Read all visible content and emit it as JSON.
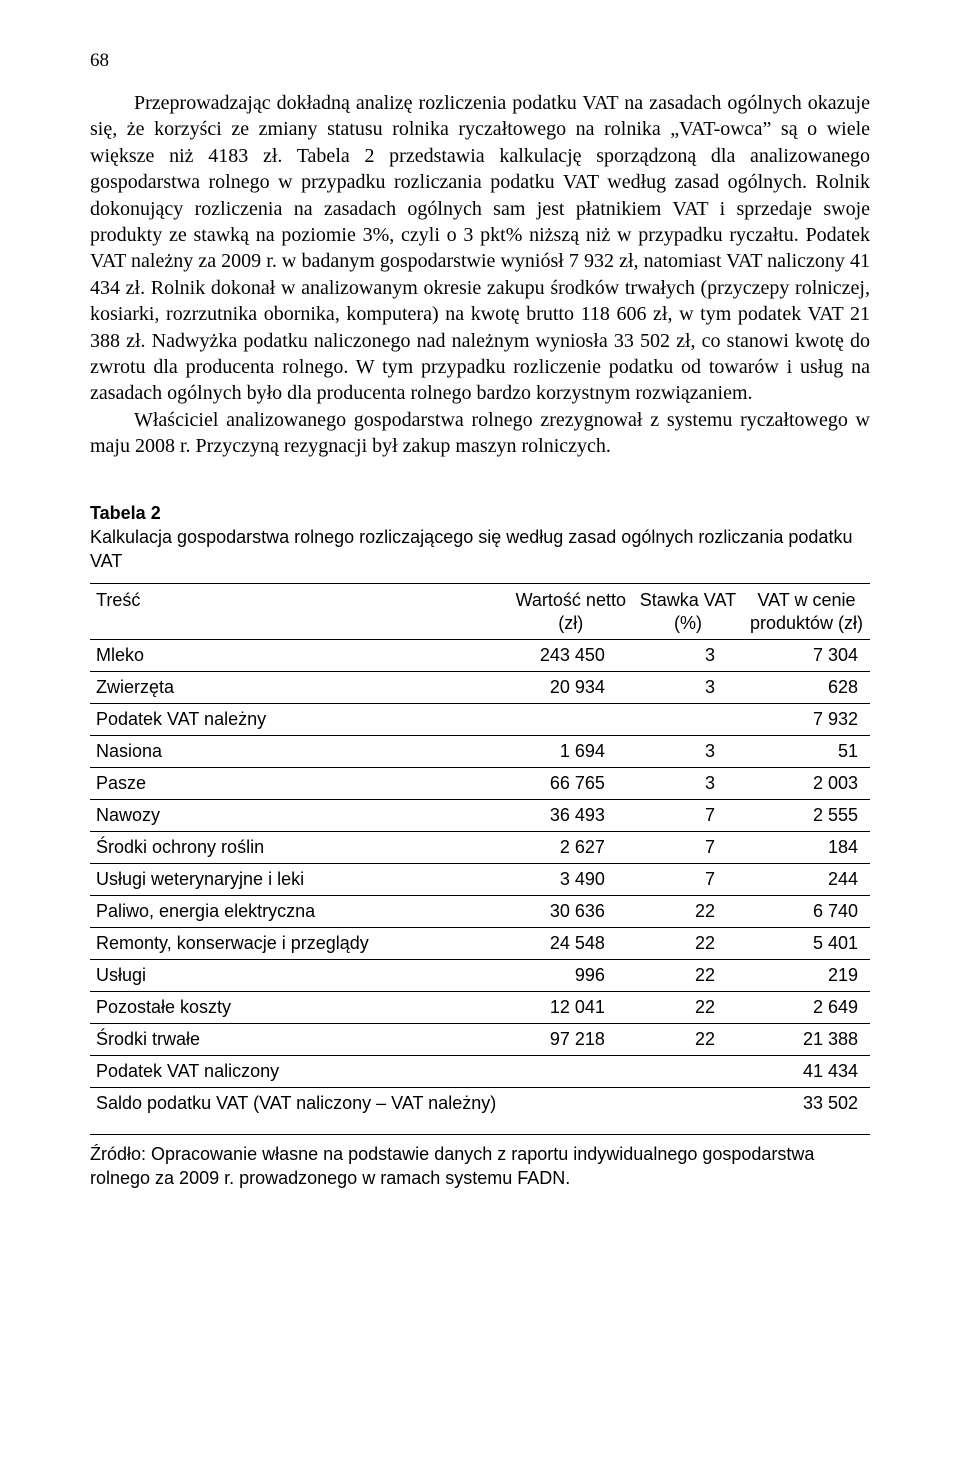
{
  "page_number": "68",
  "paragraph1": "Przeprowadzając dokładną analizę rozliczenia podatku VAT na zasadach ogólnych okazuje się, że korzyści ze zmiany statusu rolnika ryczałtowego na rolnika „VAT-owca” są o wiele większe niż 4183 zł. Tabela 2 przedstawia kalkulację sporządzoną dla analizowanego gospodarstwa rolnego w przypadku rozliczania podatku VAT według zasad ogólnych. Rolnik dokonujący rozliczenia na zasadach ogólnych sam jest płatnikiem VAT i sprzedaje swoje produkty ze stawką na poziomie 3%, czyli o 3 pkt% niższą niż w przypadku ryczałtu. Podatek VAT należny za 2009 r. w badanym gospodarstwie wyniósł 7 932 zł, natomiast VAT naliczony 41 434 zł. Rolnik  dokonał w analizowanym okresie zakupu środków trwałych (przyczepy rolniczej, kosiarki, rozrzutnika obornika, komputera) na kwotę brutto 118 606 zł, w tym podatek VAT 21 388 zł. Nadwyżka podatku naliczonego nad należnym wyniosła 33 502 zł, co stanowi kwotę do zwrotu dla producenta rolnego. W tym przypadku rozliczenie podatku od towarów i usług na zasadach ogólnych było dla producenta rolnego bardzo korzystnym rozwiązaniem.",
  "paragraph2": "Właściciel analizowanego gospodarstwa rolnego zrezygnował z systemu ryczałtowego w maju 2008 r. Przyczyną rezygnacji był zakup maszyn rolniczych.",
  "table": {
    "label": "Tabela 2",
    "caption": "Kalkulacja gospodarstwa rolnego rozliczającego się według zasad ogólnych rozliczania podatku VAT",
    "headers": {
      "c0": "Treść",
      "c1a": "Wartość netto",
      "c1b": "(zł)",
      "c2a": "Stawka VAT",
      "c2b": "(%)",
      "c3a": "VAT w cenie",
      "c3b": "produktów (zł)"
    },
    "rows": [
      {
        "label": "Mleko",
        "netto": "243 450",
        "stawka": "3",
        "vat": "7 304"
      },
      {
        "label": "Zwierzęta",
        "netto": "20 934",
        "stawka": "3",
        "vat": "628"
      },
      {
        "label": "Podatek VAT należny",
        "netto": "",
        "stawka": "",
        "vat": "7 932"
      },
      {
        "label": "Nasiona",
        "netto": "1 694",
        "stawka": "3",
        "vat": "51"
      },
      {
        "label": "Pasze",
        "netto": "66 765",
        "stawka": "3",
        "vat": "2 003"
      },
      {
        "label": "Nawozy",
        "netto": "36 493",
        "stawka": "7",
        "vat": "2 555"
      },
      {
        "label": "Środki ochrony roślin",
        "netto": "2 627",
        "stawka": "7",
        "vat": "184"
      },
      {
        "label": "Usługi weterynaryjne i leki",
        "netto": "3 490",
        "stawka": "7",
        "vat": "244"
      },
      {
        "label": "Paliwo, energia elektryczna",
        "netto": "30 636",
        "stawka": "22",
        "vat": "6 740"
      },
      {
        "label": "Remonty, konserwacje i przeglądy",
        "netto": "24 548",
        "stawka": "22",
        "vat": "5 401"
      },
      {
        "label": "Usługi",
        "netto": "996",
        "stawka": "22",
        "vat": "219"
      },
      {
        "label": "Pozostałe koszty",
        "netto": "12 041",
        "stawka": "22",
        "vat": "2 649"
      },
      {
        "label": "Środki trwałe",
        "netto": "97 218",
        "stawka": "22",
        "vat": "21 388"
      },
      {
        "label": "Podatek VAT naliczony",
        "netto": "",
        "stawka": "",
        "vat": "41 434"
      },
      {
        "label": "Saldo podatku VAT (VAT naliczony – VAT należny)",
        "netto": "",
        "stawka": "",
        "vat": "33 502"
      }
    ]
  },
  "source": "Źródło: Opracowanie własne na podstawie danych z raportu indywidualnego gospodarstwa rolnego za 2009 r. prowadzonego w ramach systemu FADN."
}
